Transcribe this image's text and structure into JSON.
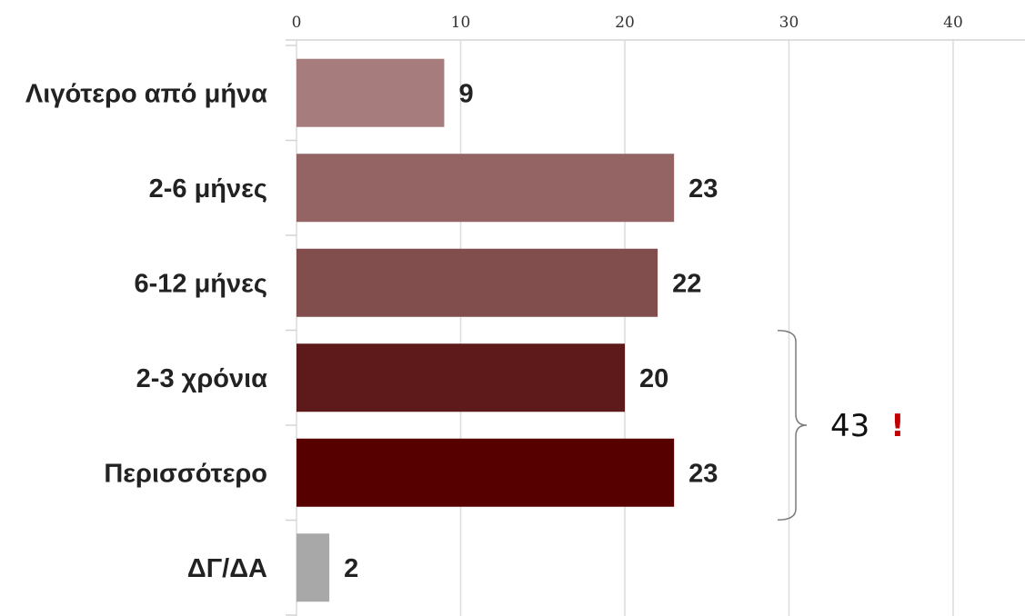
{
  "chart_data": {
    "type": "bar",
    "orientation": "horizontal",
    "title": "",
    "xlabel": "",
    "ylabel": "",
    "categories": [
      "Λιγότερο από μήνα",
      "2-6 μήνες",
      "6-12 μήνες",
      "2-3 χρόνια",
      "Περισσότερο",
      "ΔΓ/ΔΑ"
    ],
    "values": [
      9,
      23,
      22,
      20,
      23,
      2
    ],
    "data_labels": [
      "9",
      "23",
      "22",
      "20",
      "23",
      "2"
    ],
    "bar_colors": [
      "#a67c7c",
      "#946464",
      "#814d4d",
      "#5e1a1a",
      "#560000",
      "#a8a8a8"
    ],
    "xlim": [
      0,
      44
    ],
    "xticks": [
      0,
      10,
      20,
      30,
      40
    ],
    "xtick_labels": [
      "0",
      "10",
      "20",
      "30",
      "40"
    ],
    "x_axis_position": "top",
    "grid": "vertical",
    "legend": "none",
    "annotation": {
      "type": "brace",
      "categories": [
        "2-3 χρόνια",
        "Περισσότερο"
      ],
      "text": "43",
      "mark": "!",
      "mark_color": "#c00000"
    }
  }
}
